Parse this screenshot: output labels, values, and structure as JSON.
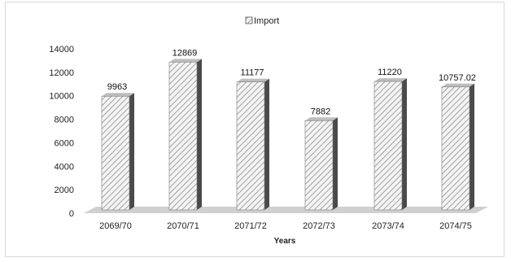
{
  "chart_data": {
    "type": "bar",
    "categories": [
      "2069/70",
      "2070/71",
      "2071/72",
      "2072/73",
      "2073/74",
      "2074/75"
    ],
    "series": [
      {
        "name": "Import",
        "values": [
          9963,
          12869,
          11177,
          7882,
          11220,
          10757.02
        ]
      }
    ],
    "data_labels": [
      "9963",
      "12869",
      "11177",
      "7882",
      "11220",
      "10757.02"
    ],
    "xlabel": "Years",
    "ylabel": "",
    "ylim": [
      0,
      14000
    ],
    "yticks": [
      0,
      2000,
      4000,
      6000,
      8000,
      10000,
      12000,
      14000
    ],
    "legend_position": "top-center",
    "grid": false,
    "style": "3d-hatched-columns",
    "colors": {
      "bar_face": "#f2f2f2",
      "hatch": "#8c8c8c",
      "bar_side": "#4a4a4a",
      "floor": "#d0d0d0"
    }
  }
}
